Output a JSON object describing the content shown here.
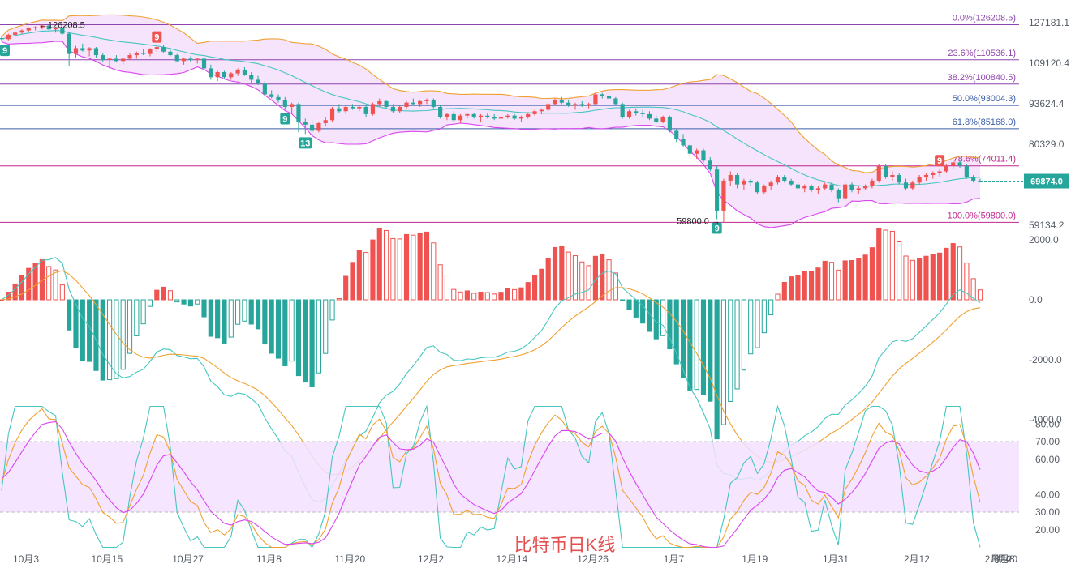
{
  "title": "比特币日K线",
  "colors": {
    "up": "#ef5350",
    "down": "#26a69a",
    "band_fill": "#f3d9fb",
    "band_upper": "#f0a030",
    "band_lower": "#d946ef",
    "band_mid": "#46c6c0",
    "macd_dif": "#46c6c0",
    "macd_dea": "#f0a030",
    "k_line": "#46c6c0",
    "d_line": "#f0a030",
    "j_line": "#d946ef",
    "rsi_zone": "#f3e1ff",
    "fib": "#8e44ad",
    "fib_blue": "#3b5ea8",
    "price_tag": "#26a69a"
  },
  "price_panel": {
    "y_ticks": [
      "127181.1",
      "109120.4",
      "93624.4",
      "80329.0",
      "59134.2"
    ],
    "y_tick_values": [
      127181.1,
      109120.4,
      93624.4,
      80329.0,
      59134.2
    ],
    "current_price": "69874.0",
    "current_price_value": 69874.0,
    "high_label": "126208.5",
    "low_label": "59800.0",
    "fib_levels": [
      {
        "label": "0.0%(126208.5)",
        "value": 126208.5
      },
      {
        "label": "23.6%(110536.1)",
        "value": 110536.1
      },
      {
        "label": "38.2%(100840.5)",
        "value": 100840.5
      },
      {
        "label": "50.0%(93004.3)",
        "value": 93004.3
      },
      {
        "label": "61.8%(85168.0)",
        "value": 85168.0
      },
      {
        "label": "78.6%(74011.4)",
        "value": 74011.4
      },
      {
        "label": "100.0%(59800.0)",
        "value": 59800.0
      }
    ],
    "td_markers": [
      {
        "label": "9",
        "type": "sell",
        "index": 23
      },
      {
        "label": "9",
        "type": "buy",
        "index": 42
      },
      {
        "label": "13",
        "type": "buy",
        "index": 45
      },
      {
        "label": "9",
        "type": "buy",
        "index": 106
      },
      {
        "label": "9",
        "type": "sell",
        "index": 139
      },
      {
        "label": "9",
        "type": "buy",
        "index": 0
      }
    ]
  },
  "macd_panel": {
    "y_ticks": [
      "2000.0",
      "0.0",
      "-2000.0",
      "-4000.0"
    ],
    "y_tick_values": [
      2000,
      0,
      -2000,
      -4000
    ]
  },
  "kdj_panel": {
    "y_ticks": [
      "80.00",
      "70.00",
      "60.00",
      "40.00",
      "30.00",
      "20.00"
    ],
    "y_tick_values": [
      80,
      70,
      60,
      40,
      30,
      20
    ],
    "zone": [
      30,
      70
    ]
  },
  "x_axis": {
    "labels": [
      "10月3",
      "10月15",
      "10月27",
      "11月8",
      "11月20",
      "12月2",
      "12月14",
      "12月26",
      "1月7",
      "1月19",
      "1月31",
      "2月12",
      "2月24",
      "3月8",
      "3月20"
    ]
  },
  "chart_data": {
    "type": "candlestick",
    "title": "比特币日K线",
    "candles": [
      [
        120000,
        121000,
        118500,
        119500
      ],
      [
        119500,
        122000,
        119000,
        121500
      ],
      [
        121500,
        123000,
        120500,
        122500
      ],
      [
        122500,
        124000,
        121800,
        123500
      ],
      [
        123500,
        125000,
        123000,
        124500
      ],
      [
        124500,
        125500,
        123500,
        125000
      ],
      [
        125000,
        126208.5,
        124000,
        125800
      ],
      [
        125800,
        126000,
        123500,
        124000
      ],
      [
        124000,
        125200,
        122500,
        124800
      ],
      [
        124800,
        125000,
        121500,
        122000
      ],
      [
        122000,
        123000,
        108000,
        113000
      ],
      [
        113000,
        116500,
        111500,
        115500
      ],
      [
        115500,
        117500,
        114000,
        114500
      ],
      [
        114500,
        116000,
        112000,
        115500
      ],
      [
        115500,
        116000,
        111500,
        112500
      ],
      [
        112500,
        113500,
        109500,
        110500
      ],
      [
        110500,
        111500,
        107000,
        111000
      ],
      [
        111000,
        112500,
        109500,
        110000
      ],
      [
        110000,
        111500,
        108500,
        111000
      ],
      [
        111000,
        113500,
        110500,
        112500
      ],
      [
        112500,
        114000,
        111000,
        113500
      ],
      [
        113500,
        115000,
        112500,
        113000
      ],
      [
        113000,
        115500,
        112000,
        115000
      ],
      [
        115000,
        116500,
        114000,
        116000
      ],
      [
        116000,
        117000,
        113500,
        114000
      ],
      [
        114000,
        115500,
        112000,
        112500
      ],
      [
        112500,
        113000,
        109500,
        110000
      ],
      [
        110000,
        111500,
        108500,
        111000
      ],
      [
        111000,
        112000,
        109500,
        110500
      ],
      [
        110500,
        111500,
        109000,
        111000
      ],
      [
        111000,
        111500,
        106500,
        107000
      ],
      [
        107000,
        108500,
        102500,
        103500
      ],
      [
        103500,
        106000,
        102000,
        105500
      ],
      [
        105500,
        106000,
        103000,
        103500
      ],
      [
        103500,
        105500,
        102500,
        105000
      ],
      [
        105000,
        107000,
        104000,
        106500
      ],
      [
        106500,
        107500,
        104000,
        104500
      ],
      [
        104500,
        105500,
        101000,
        102500
      ],
      [
        102500,
        104000,
        100500,
        101000
      ],
      [
        101000,
        102000,
        96500,
        97000
      ],
      [
        97000,
        98500,
        95500,
        96000
      ],
      [
        96000,
        97000,
        94000,
        95000
      ],
      [
        95000,
        96000,
        91500,
        92500
      ],
      [
        92500,
        94000,
        90000,
        93500
      ],
      [
        93500,
        94000,
        84000,
        87500
      ],
      [
        87500,
        88500,
        83500,
        86500
      ],
      [
        86500,
        88000,
        83000,
        84500
      ],
      [
        84500,
        87500,
        84000,
        87000
      ],
      [
        87000,
        89000,
        86000,
        88000
      ],
      [
        88000,
        92500,
        87500,
        92000
      ],
      [
        92000,
        93500,
        90500,
        91000
      ],
      [
        91000,
        93000,
        90000,
        92500
      ],
      [
        92500,
        93500,
        91500,
        92000
      ],
      [
        92000,
        93000,
        91000,
        92500
      ],
      [
        92500,
        93000,
        89000,
        90000
      ],
      [
        90000,
        94000,
        89500,
        93500
      ],
      [
        93500,
        95500,
        92500,
        94500
      ],
      [
        94500,
        95000,
        92000,
        92500
      ],
      [
        92500,
        93500,
        90500,
        91000
      ],
      [
        91000,
        93000,
        90500,
        92500
      ],
      [
        92500,
        94500,
        92000,
        94000
      ],
      [
        94000,
        95500,
        93000,
        93500
      ],
      [
        93500,
        95000,
        92500,
        94500
      ],
      [
        94500,
        95500,
        93500,
        95000
      ],
      [
        95000,
        95500,
        92000,
        92500
      ],
      [
        92500,
        93000,
        88500,
        89000
      ],
      [
        89000,
        90500,
        88000,
        90000
      ],
      [
        90000,
        91000,
        87500,
        88000
      ],
      [
        88000,
        90000,
        87000,
        89500
      ],
      [
        89500,
        90500,
        88500,
        90000
      ],
      [
        90000,
        90500,
        88500,
        89000
      ],
      [
        89000,
        90000,
        87500,
        89500
      ],
      [
        89500,
        90500,
        88500,
        89000
      ],
      [
        89000,
        90000,
        88000,
        88500
      ],
      [
        88500,
        89500,
        87500,
        89000
      ],
      [
        89000,
        90000,
        88500,
        89500
      ],
      [
        89500,
        90000,
        88000,
        88500
      ],
      [
        88500,
        89500,
        87500,
        89000
      ],
      [
        89000,
        90500,
        88500,
        90000
      ],
      [
        90000,
        91500,
        89500,
        91000
      ],
      [
        91000,
        92000,
        90000,
        91500
      ],
      [
        91500,
        94000,
        91000,
        93500
      ],
      [
        93500,
        95500,
        93000,
        95000
      ],
      [
        95000,
        96000,
        93500,
        94000
      ],
      [
        94000,
        95000,
        92500,
        93000
      ],
      [
        93000,
        94000,
        91500,
        93500
      ],
      [
        93500,
        94500,
        92500,
        93000
      ],
      [
        93000,
        94000,
        92000,
        93500
      ],
      [
        93500,
        97500,
        93000,
        97000
      ],
      [
        97000,
        97500,
        95500,
        96500
      ],
      [
        96500,
        97000,
        95000,
        95500
      ],
      [
        95500,
        96000,
        93000,
        93500
      ],
      [
        93500,
        94000,
        88500,
        89000
      ],
      [
        89000,
        91500,
        88500,
        91000
      ],
      [
        91000,
        92000,
        89500,
        90500
      ],
      [
        90500,
        91500,
        89000,
        90000
      ],
      [
        90000,
        91000,
        88000,
        88500
      ],
      [
        88500,
        89500,
        87000,
        87500
      ],
      [
        87500,
        89500,
        87000,
        89000
      ],
      [
        89000,
        89500,
        84000,
        84500
      ],
      [
        84500,
        85000,
        81000,
        82000
      ],
      [
        82000,
        83500,
        79500,
        80000
      ],
      [
        80000,
        80500,
        76500,
        77500
      ],
      [
        77500,
        79000,
        76000,
        78500
      ],
      [
        78500,
        79000,
        75000,
        75500
      ],
      [
        75500,
        76500,
        72500,
        73000
      ],
      [
        73000,
        74000,
        60500,
        62500
      ],
      [
        62500,
        70500,
        59800,
        70000
      ],
      [
        70000,
        72500,
        68500,
        71500
      ],
      [
        71500,
        72000,
        68000,
        69000
      ],
      [
        69000,
        70500,
        67500,
        70000
      ],
      [
        70000,
        70500,
        68500,
        69500
      ],
      [
        69500,
        70000,
        66500,
        67000
      ],
      [
        67000,
        69000,
        66500,
        68500
      ],
      [
        68500,
        70000,
        67500,
        69500
      ],
      [
        69500,
        71500,
        69000,
        71000
      ],
      [
        71000,
        71500,
        69500,
        70000
      ],
      [
        70000,
        70500,
        68500,
        69000
      ],
      [
        69000,
        69500,
        67500,
        68000
      ],
      [
        68000,
        69000,
        67000,
        68500
      ],
      [
        68500,
        69000,
        67000,
        67500
      ],
      [
        67500,
        68500,
        66500,
        68000
      ],
      [
        68000,
        69500,
        67500,
        69000
      ],
      [
        69000,
        69500,
        67000,
        67500
      ],
      [
        67500,
        68000,
        64500,
        65500
      ],
      [
        65500,
        69500,
        65000,
        69000
      ],
      [
        69000,
        69500,
        67000,
        67500
      ],
      [
        67500,
        68500,
        66500,
        68000
      ],
      [
        68000,
        69000,
        67500,
        68500
      ],
      [
        68500,
        70500,
        68000,
        70000
      ],
      [
        70000,
        74500,
        69500,
        74000
      ],
      [
        74000,
        74500,
        70500,
        71000
      ],
      [
        71000,
        72500,
        70000,
        71500
      ],
      [
        71500,
        72000,
        69000,
        69500
      ],
      [
        69500,
        70500,
        67500,
        68000
      ],
      [
        68000,
        70000,
        67500,
        69500
      ],
      [
        69500,
        71500,
        69000,
        71000
      ],
      [
        71000,
        72000,
        70000,
        71500
      ],
      [
        71500,
        72500,
        70500,
        72000
      ],
      [
        72000,
        73000,
        71000,
        72500
      ],
      [
        72500,
        74500,
        72000,
        74000
      ],
      [
        74000,
        75500,
        73000,
        75000
      ],
      [
        75000,
        75500,
        73500,
        74000
      ],
      [
        74000,
        74500,
        70500,
        71000
      ],
      [
        71000,
        71500,
        69500,
        70000
      ],
      [
        70000,
        70500,
        69500,
        69874
      ]
    ]
  }
}
